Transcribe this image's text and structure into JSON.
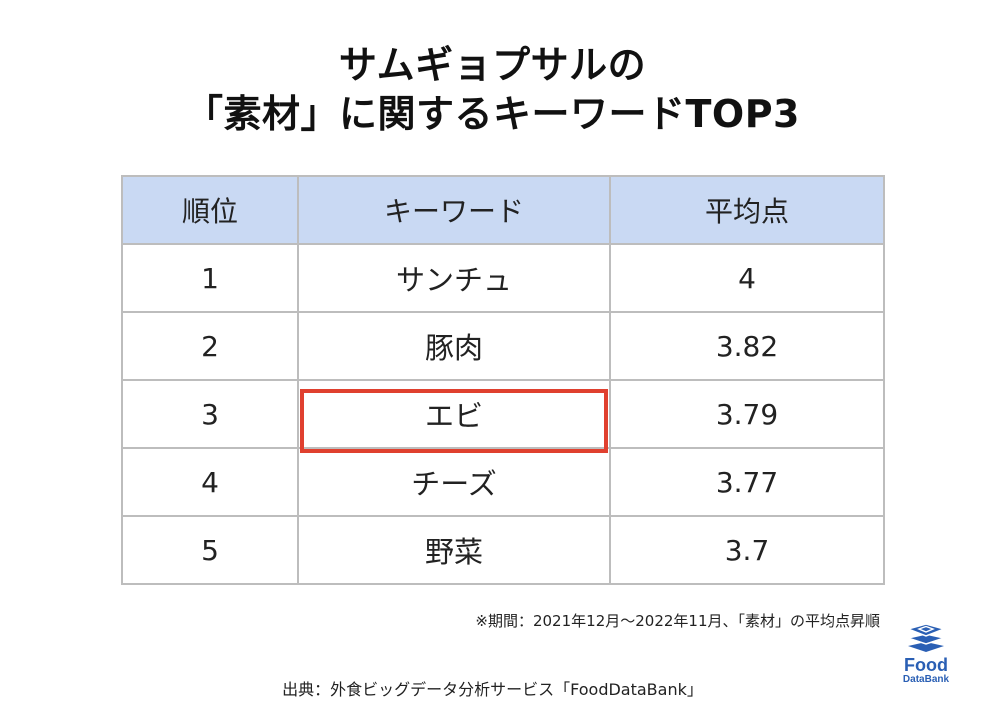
{
  "title": {
    "line1": "サムギョプサルの",
    "line2": "「素材」に関するキーワードTOP3"
  },
  "table": {
    "headers": [
      "順位",
      "キーワード",
      "平均点"
    ],
    "rows": [
      {
        "rank": "1",
        "keyword": "サンチュ",
        "score": "4"
      },
      {
        "rank": "2",
        "keyword": "豚肉",
        "score": "3.82"
      },
      {
        "rank": "3",
        "keyword": "エビ",
        "score": "3.79"
      },
      {
        "rank": "4",
        "keyword": "チーズ",
        "score": "3.77"
      },
      {
        "rank": "5",
        "keyword": "野菜",
        "score": "3.7"
      }
    ],
    "highlight_color": "#e0402f",
    "header_color": "#c9d9f3"
  },
  "note": "※期間：2021年12月〜2022年11月、「素材」の平均点昇順",
  "source": "出典：外食ビッグデータ分析サービス「FoodDataBank」",
  "logo": {
    "word": "Food",
    "sub": "DataBank",
    "color": "#2a5fb4",
    "icon": "stacked-layers-icon"
  }
}
